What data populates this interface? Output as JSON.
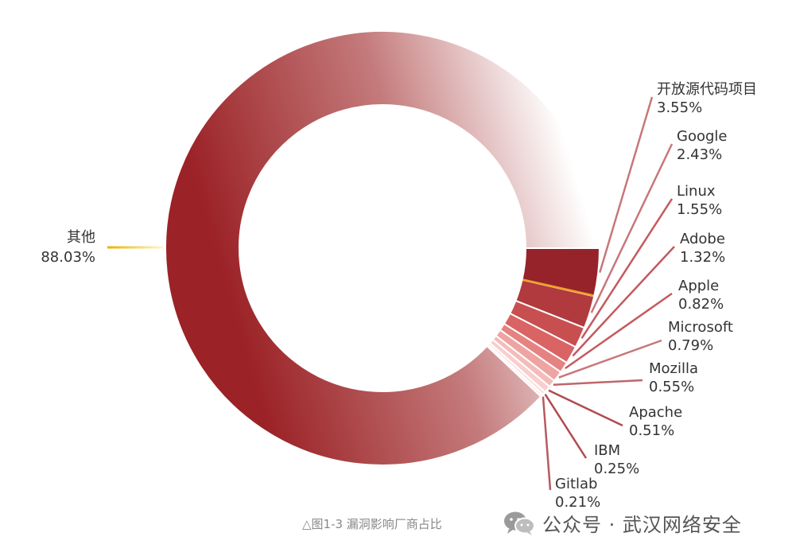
{
  "chart_data": {
    "type": "pie",
    "donut": true,
    "slices": [
      {
        "label": "其他",
        "value_text": "88.03%",
        "value": 88.03,
        "color": "#9b2226"
      },
      {
        "label": "开放源代码项目",
        "value_text": "3.55%",
        "value": 3.55,
        "color": "#96232a"
      },
      {
        "label": "Google",
        "value_text": "2.43%",
        "value": 2.43,
        "color": "#b03a3d"
      },
      {
        "label": "Linux",
        "value_text": "1.55%",
        "value": 1.55,
        "color": "#c84f50"
      },
      {
        "label": "Adobe",
        "value_text": "1.32%",
        "value": 1.32,
        "color": "#da6364"
      },
      {
        "label": "Apple",
        "value_text": "0.82%",
        "value": 0.82,
        "color": "#e58382"
      },
      {
        "label": "Microsoft",
        "value_text": "0.79%",
        "value": 0.79,
        "color": "#eea4a3"
      },
      {
        "label": "Mozilla",
        "value_text": "0.55%",
        "value": 0.55,
        "color": "#f3bcbb"
      },
      {
        "label": "Apache",
        "value_text": "0.51%",
        "value": 0.51,
        "color": "#f7cfce"
      },
      {
        "label": "IBM",
        "value_text": "0.25%",
        "value": 0.25,
        "color": "#fadfde"
      },
      {
        "label": "Gitlab",
        "value_text": "0.21%",
        "value": 0.21,
        "color": "#fcecec"
      }
    ]
  },
  "caption": "△图1-3 漏洞影响厂商占比",
  "watermark": "公众号 · 武汉网络安全"
}
